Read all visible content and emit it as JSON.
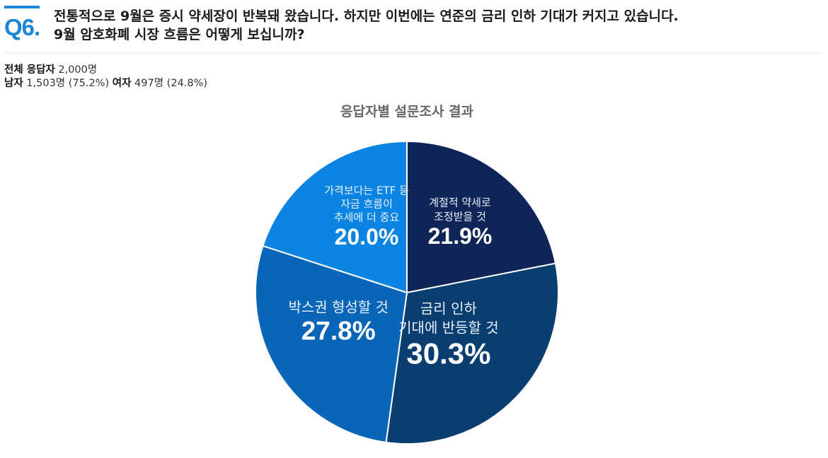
{
  "question": {
    "number": "Q6.",
    "line1": "전통적으로 9월은 증시 약세장이 반복돼 왔습니다. 하지만 이번에는 연준의 금리 인하 기대가 커지고 있습니다.",
    "line2": "9월 암호화폐 시장 흐름은 어떻게 보십니까?"
  },
  "respondents": {
    "total_label": "전체 응답자",
    "total_value": "2,000명",
    "male_label": "남자",
    "male_value": "1,503명 (75.2%)",
    "female_label": "여자",
    "female_value": "497명 (24.8%)"
  },
  "chart_data": {
    "type": "pie",
    "title": "응답자별 설문조사 결과",
    "start_angle": "12 o'clock",
    "direction": "clockwise",
    "slices": [
      {
        "label": [
          "계절적 약세로",
          "조정받을 것"
        ],
        "value": 21.9,
        "display": "21.9%",
        "color": "#0f2557"
      },
      {
        "label": [
          "금리 인하",
          "기대에 반등할 것"
        ],
        "value": 30.3,
        "display": "30.3%",
        "color": "#0a3e70"
      },
      {
        "label": [
          "박스권 형성할 것"
        ],
        "value": 27.8,
        "display": "27.8%",
        "color": "#0865b8"
      },
      {
        "label": [
          "가격보다는 ETF 등",
          "자금 흐름이",
          "추세에 더 중요"
        ],
        "value": 20.0,
        "display": "20.0%",
        "color": "#0a84e2"
      }
    ]
  }
}
